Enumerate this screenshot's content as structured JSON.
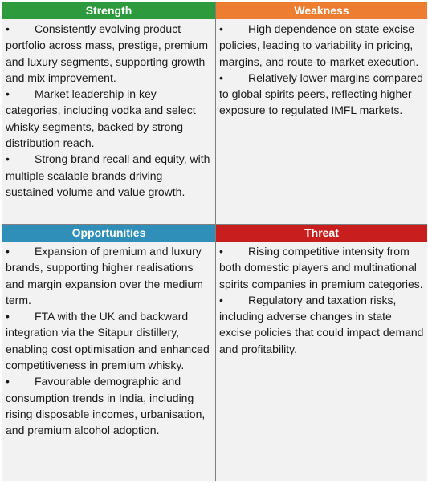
{
  "colors": {
    "strength": "#2e9a3e",
    "weakness": "#ed7d31",
    "opportunities": "#2f8fb8",
    "threat": "#c81e1e"
  },
  "bullet_char": "•",
  "quadrants": [
    {
      "key": "strength",
      "title": "Strength",
      "items": [
        "Consistently evolving product portfolio across mass, prestige, premium and luxury segments, supporting growth and mix improvement.",
        "Market leadership in key categories, including vodka and select whisky segments, backed by strong distribution reach.",
        "Strong brand recall and equity, with multiple scalable brands driving sustained volume and value growth."
      ]
    },
    {
      "key": "weakness",
      "title": "Weakness",
      "items": [
        "High dependence on state excise policies, leading to variability in pricing, margins, and route-to-market execution.",
        "Relatively lower margins compared to global spirits peers, reflecting higher exposure to regulated IMFL markets."
      ]
    },
    {
      "key": "opportunities",
      "title": "Opportunities",
      "items": [
        "Expansion of premium and luxury brands, supporting higher realisations and margin expansion over the medium term.",
        "FTA with the UK and backward integration via the Sitapur distillery, enabling cost optimisation and enhanced competitiveness in premium whisky.",
        "Favourable demographic and consumption trends in India, including rising disposable incomes, urbanisation, and premium alcohol adoption."
      ]
    },
    {
      "key": "threat",
      "title": "Threat",
      "items": [
        "Rising competitive intensity from both domestic players and multinational spirits companies in premium categories.",
        "Regulatory and taxation risks, including adverse changes in state excise policies that could impact demand and profitability."
      ]
    }
  ]
}
